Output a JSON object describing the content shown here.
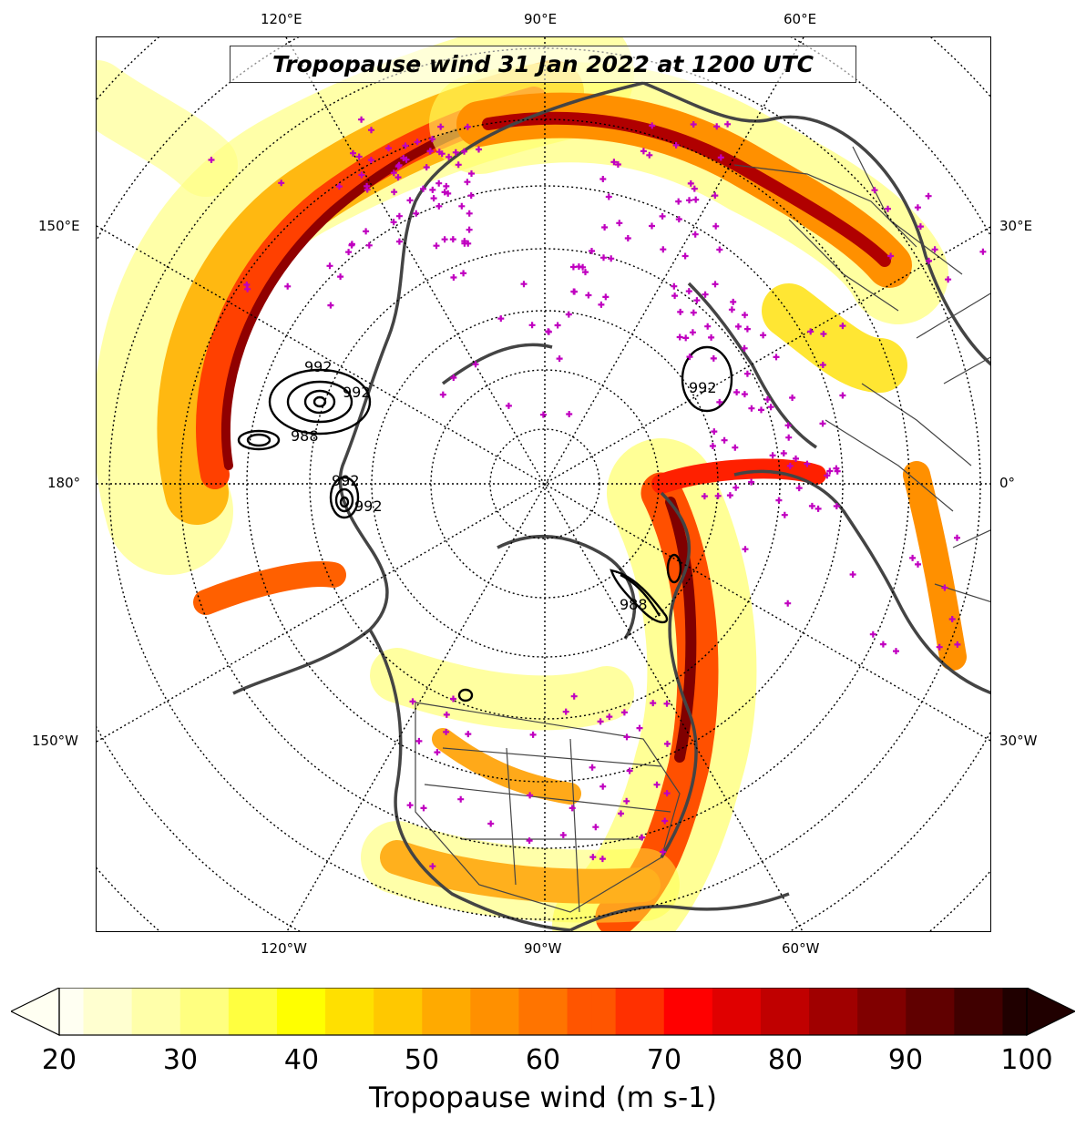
{
  "title": "Tropopause wind 31 Jan 2022 at 1200 UTC",
  "longitude_labels": {
    "top": [
      "120°E",
      "90°E",
      "60°E"
    ],
    "bottom": [
      "120°W",
      "90°W",
      "60°W"
    ],
    "left": [
      "150°E",
      "180°",
      "150°W"
    ],
    "right": [
      "30°E",
      "0°",
      "30°W"
    ]
  },
  "pressure_contour_labels": [
    "992",
    "988",
    "992",
    "992",
    "988",
    "992",
    "992"
  ],
  "colorbar": {
    "label": "Tropopause wind (m s-1)",
    "ticks": [
      "20",
      "30",
      "40",
      "50",
      "60",
      "70",
      "80",
      "90",
      "100"
    ],
    "min": 20,
    "max": 100,
    "extend": "both",
    "colors": [
      "#fffff2",
      "#ffffd0",
      "#ffffaa",
      "#ffff80",
      "#ffff40",
      "#ffff00",
      "#ffe000",
      "#ffc800",
      "#ffaa00",
      "#ff9000",
      "#ff7400",
      "#ff5500",
      "#ff3000",
      "#ff0000",
      "#e00000",
      "#c00000",
      "#a00000",
      "#800000",
      "#600000",
      "#400000",
      "#200000"
    ]
  },
  "legend_colors": {
    "station_marker": "#c000c0",
    "coastline": "#444444",
    "pressure_contour": "#000000"
  }
}
